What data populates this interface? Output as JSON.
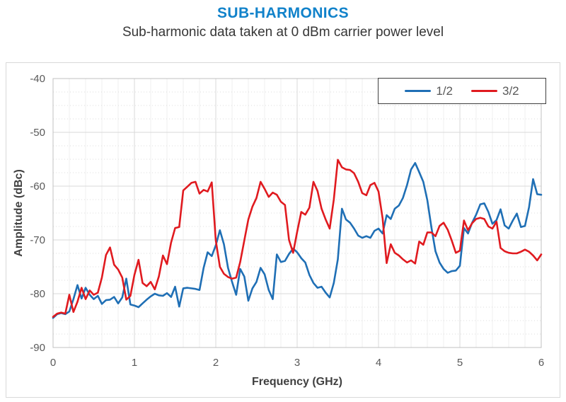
{
  "header": {
    "title": "SUB-HARMONICS",
    "subtitle": "Sub-harmonic data taken at 0 dBm carrier power level"
  },
  "colors": {
    "title": "#1182ca",
    "subtitle": "#363636",
    "series_half": "#1f6fb5",
    "series_three_half": "#e01a1f",
    "grid_major": "#d9d9d9",
    "grid_minor": "#efefef",
    "grid_minor_dotted": "#dedede",
    "plot_border": "#c0c0c0",
    "frame_border": "#d9d9d9",
    "tick_text": "#595959",
    "axis_title_text": "#404040",
    "legend_border": "#3f3f3f"
  },
  "chart_data": {
    "type": "line",
    "title": "SUB-HARMONICS",
    "subtitle": "Sub-harmonic data taken at 0 dBm carrier power level",
    "xlabel": "Frequency (GHz)",
    "ylabel": "Amplitude (dBc)",
    "xlim": [
      0,
      6
    ],
    "ylim": [
      -90,
      -40
    ],
    "x_ticks": [
      0,
      1,
      2,
      3,
      4,
      5,
      6
    ],
    "y_ticks": [
      -40,
      -50,
      -60,
      -70,
      -80,
      -90
    ],
    "minor_x_step": 0.2,
    "minor_y_step": 2.5,
    "grid": "major-and-minor",
    "legend": {
      "position": "top-right",
      "entries": [
        "1/2",
        "3/2"
      ]
    },
    "x_step": 0.05,
    "series": [
      {
        "name": "1/2",
        "color": "#1f6fb5",
        "values": [
          -84.5,
          -83.8,
          -83.6,
          -83.8,
          -83.3,
          -81.0,
          -78.4,
          -80.9,
          -78.9,
          -80.2,
          -81.0,
          -80.4,
          -81.9,
          -81.2,
          -81.1,
          -80.6,
          -81.8,
          -80.7,
          -77.2,
          -82.0,
          -82.2,
          -82.5,
          -81.8,
          -81.1,
          -80.5,
          -80.0,
          -80.3,
          -80.4,
          -79.9,
          -80.6,
          -78.7,
          -82.4,
          -79.0,
          -78.9,
          -79.0,
          -79.1,
          -79.3,
          -75.2,
          -72.3,
          -73.0,
          -71.0,
          -68.2,
          -70.8,
          -75.2,
          -77.8,
          -80.2,
          -75.4,
          -76.8,
          -81.3,
          -79.0,
          -77.8,
          -75.2,
          -76.4,
          -79.3,
          -81.0,
          -72.7,
          -74.1,
          -73.9,
          -72.6,
          -71.6,
          -72.3,
          -73.4,
          -74.2,
          -76.5,
          -78.0,
          -78.9,
          -78.7,
          -79.8,
          -80.7,
          -78.0,
          -73.6,
          -64.2,
          -66.2,
          -66.8,
          -67.9,
          -69.2,
          -69.6,
          -69.3,
          -69.6,
          -68.3,
          -67.9,
          -68.8,
          -65.4,
          -66.1,
          -64.2,
          -63.6,
          -62.2,
          -59.8,
          -56.9,
          -55.7,
          -57.4,
          -59.2,
          -62.6,
          -67.7,
          -72.1,
          -74.2,
          -75.4,
          -76.1,
          -75.8,
          -75.7,
          -74.8,
          -67.8,
          -68.8,
          -66.8,
          -65.3,
          -63.4,
          -63.2,
          -64.8,
          -67.0,
          -66.3,
          -64.3,
          -67.3,
          -67.9,
          -66.4,
          -65.1,
          -67.6,
          -67.4,
          -63.9,
          -58.7,
          -61.5,
          -61.6
        ]
      },
      {
        "name": "3/2",
        "color": "#e01a1f",
        "values": [
          -84.3,
          -83.7,
          -83.5,
          -83.7,
          -80.2,
          -83.4,
          -81.5,
          -78.9,
          -81.0,
          -79.4,
          -80.2,
          -79.8,
          -77.0,
          -72.8,
          -71.4,
          -74.6,
          -75.5,
          -77.0,
          -81.1,
          -80.4,
          -76.5,
          -73.7,
          -78.0,
          -78.6,
          -77.8,
          -79.2,
          -76.8,
          -72.9,
          -74.5,
          -70.5,
          -67.8,
          -67.6,
          -60.8,
          -60.1,
          -59.4,
          -59.2,
          -61.4,
          -60.7,
          -61.0,
          -59.3,
          -70.1,
          -75.0,
          -76.3,
          -76.9,
          -77.2,
          -77.0,
          -74.1,
          -70.1,
          -66.2,
          -63.8,
          -62.2,
          -59.2,
          -60.5,
          -62.0,
          -61.2,
          -61.6,
          -62.9,
          -63.5,
          -70.0,
          -72.4,
          -68.5,
          -64.8,
          -65.3,
          -64.0,
          -59.2,
          -60.9,
          -64.2,
          -66.2,
          -67.9,
          -62.5,
          -55.1,
          -56.5,
          -56.9,
          -57.0,
          -57.6,
          -59.2,
          -61.3,
          -61.7,
          -59.8,
          -59.4,
          -61.0,
          -66.0,
          -74.3,
          -70.8,
          -72.4,
          -72.9,
          -73.6,
          -74.2,
          -73.8,
          -74.4,
          -70.3,
          -70.9,
          -68.6,
          -68.6,
          -69.3,
          -67.4,
          -66.8,
          -68.1,
          -70.1,
          -72.4,
          -72.0,
          -66.4,
          -68.2,
          -66.9,
          -66.1,
          -65.9,
          -66.1,
          -67.5,
          -67.9,
          -66.6,
          -71.5,
          -72.1,
          -72.4,
          -72.5,
          -72.5,
          -72.2,
          -71.8,
          -72.2,
          -72.9,
          -73.8,
          -72.7
        ]
      }
    ]
  }
}
